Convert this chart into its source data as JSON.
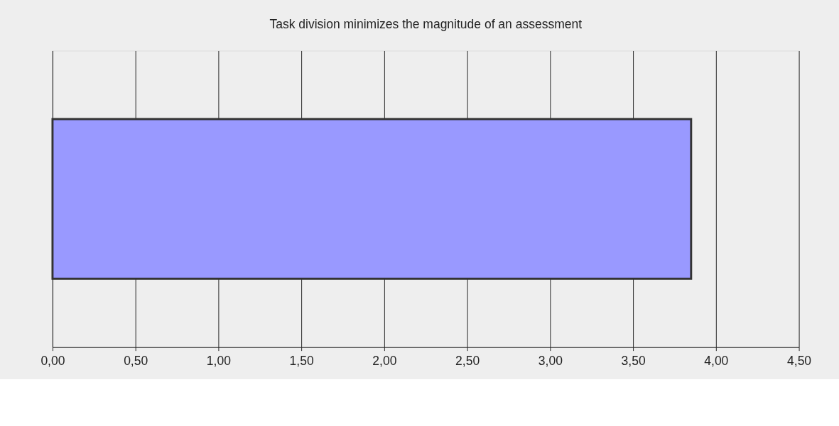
{
  "chart_data": {
    "type": "bar",
    "orientation": "horizontal",
    "title": "Task division minimizes the magnitude of an assessment",
    "categories": [
      null
    ],
    "values": [
      3.85
    ],
    "color": "#9999ff",
    "xlim": [
      0,
      4.5
    ],
    "xticks": [
      {
        "value": 0,
        "label": "0,00"
      },
      {
        "value": 0.5,
        "label": "0,50"
      },
      {
        "value": 1,
        "label": "1,00"
      },
      {
        "value": 1.5,
        "label": "1,50"
      },
      {
        "value": 2,
        "label": "2,00"
      },
      {
        "value": 2.5,
        "label": "2,50"
      },
      {
        "value": 3,
        "label": "3,00"
      },
      {
        "value": 3.5,
        "label": "3,50"
      },
      {
        "value": 4,
        "label": "4,00"
      },
      {
        "value": 4.5,
        "label": "4,50"
      }
    ],
    "grid": "x"
  }
}
